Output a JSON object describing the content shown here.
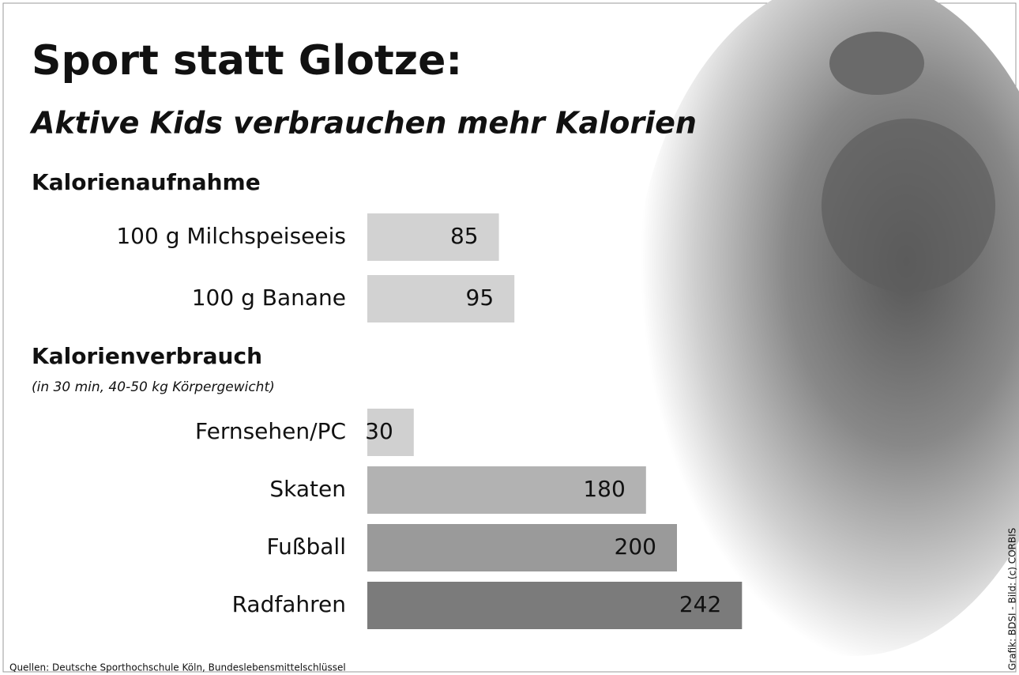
{
  "title": "Sport statt Glotze:",
  "subtitle": "Aktive Kids verbrauchen mehr Kalorien",
  "source": "Quellen: Deutsche Sporthochschule Köln, Bundeslebensmittelschlüssel",
  "credit": "Grafik: BDSI  -  Bild: (c) CORBIS",
  "chart_data": [
    {
      "type": "bar",
      "title": "Kalorienaufnahme",
      "categories": [
        "100 g Milchspeiseeis",
        "100 g Banane"
      ],
      "values": [
        85,
        95
      ],
      "colors": [
        "#d2d2d2",
        "#d2d2d2"
      ]
    },
    {
      "type": "bar",
      "title": "Kalorienverbrauch",
      "subtitle": "(in 30 min, 40-50 kg Körpergewicht)",
      "categories": [
        "Fernsehen/PC",
        "Skaten",
        "Fußball",
        "Radfahren"
      ],
      "values": [
        30,
        180,
        200,
        242
      ],
      "colors": [
        "#d0d0d0",
        "#b2b2b2",
        "#9a9a9a",
        "#7b7b7b"
      ]
    }
  ]
}
